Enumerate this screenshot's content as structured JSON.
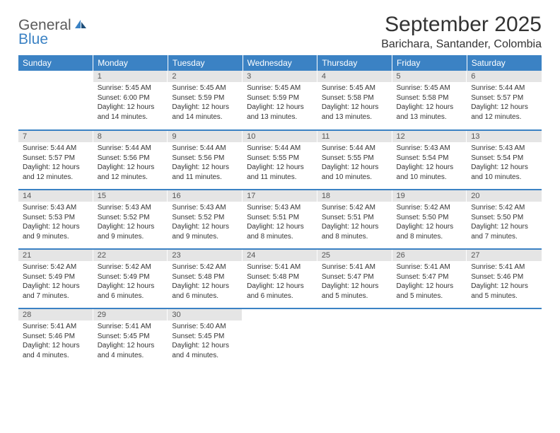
{
  "logo": {
    "line1": "General",
    "line2": "Blue"
  },
  "title": "September 2025",
  "location": "Barichara, Santander, Colombia",
  "colors": {
    "header_bg": "#3b82c4",
    "header_text": "#ffffff",
    "daynum_bg": "#e5e5e5",
    "daynum_text": "#555555",
    "body_text": "#333333",
    "row_border": "#3b82c4",
    "logo_gray": "#5a5a5a",
    "logo_blue": "#3b82c4",
    "page_bg": "#ffffff"
  },
  "weekdays": [
    "Sunday",
    "Monday",
    "Tuesday",
    "Wednesday",
    "Thursday",
    "Friday",
    "Saturday"
  ],
  "weeks": [
    [
      {
        "day": "",
        "lines": []
      },
      {
        "day": "1",
        "lines": [
          "Sunrise: 5:45 AM",
          "Sunset: 6:00 PM",
          "Daylight: 12 hours and 14 minutes."
        ]
      },
      {
        "day": "2",
        "lines": [
          "Sunrise: 5:45 AM",
          "Sunset: 5:59 PM",
          "Daylight: 12 hours and 14 minutes."
        ]
      },
      {
        "day": "3",
        "lines": [
          "Sunrise: 5:45 AM",
          "Sunset: 5:59 PM",
          "Daylight: 12 hours and 13 minutes."
        ]
      },
      {
        "day": "4",
        "lines": [
          "Sunrise: 5:45 AM",
          "Sunset: 5:58 PM",
          "Daylight: 12 hours and 13 minutes."
        ]
      },
      {
        "day": "5",
        "lines": [
          "Sunrise: 5:45 AM",
          "Sunset: 5:58 PM",
          "Daylight: 12 hours and 13 minutes."
        ]
      },
      {
        "day": "6",
        "lines": [
          "Sunrise: 5:44 AM",
          "Sunset: 5:57 PM",
          "Daylight: 12 hours and 12 minutes."
        ]
      }
    ],
    [
      {
        "day": "7",
        "lines": [
          "Sunrise: 5:44 AM",
          "Sunset: 5:57 PM",
          "Daylight: 12 hours and 12 minutes."
        ]
      },
      {
        "day": "8",
        "lines": [
          "Sunrise: 5:44 AM",
          "Sunset: 5:56 PM",
          "Daylight: 12 hours and 12 minutes."
        ]
      },
      {
        "day": "9",
        "lines": [
          "Sunrise: 5:44 AM",
          "Sunset: 5:56 PM",
          "Daylight: 12 hours and 11 minutes."
        ]
      },
      {
        "day": "10",
        "lines": [
          "Sunrise: 5:44 AM",
          "Sunset: 5:55 PM",
          "Daylight: 12 hours and 11 minutes."
        ]
      },
      {
        "day": "11",
        "lines": [
          "Sunrise: 5:44 AM",
          "Sunset: 5:55 PM",
          "Daylight: 12 hours and 10 minutes."
        ]
      },
      {
        "day": "12",
        "lines": [
          "Sunrise: 5:43 AM",
          "Sunset: 5:54 PM",
          "Daylight: 12 hours and 10 minutes."
        ]
      },
      {
        "day": "13",
        "lines": [
          "Sunrise: 5:43 AM",
          "Sunset: 5:54 PM",
          "Daylight: 12 hours and 10 minutes."
        ]
      }
    ],
    [
      {
        "day": "14",
        "lines": [
          "Sunrise: 5:43 AM",
          "Sunset: 5:53 PM",
          "Daylight: 12 hours and 9 minutes."
        ]
      },
      {
        "day": "15",
        "lines": [
          "Sunrise: 5:43 AM",
          "Sunset: 5:52 PM",
          "Daylight: 12 hours and 9 minutes."
        ]
      },
      {
        "day": "16",
        "lines": [
          "Sunrise: 5:43 AM",
          "Sunset: 5:52 PM",
          "Daylight: 12 hours and 9 minutes."
        ]
      },
      {
        "day": "17",
        "lines": [
          "Sunrise: 5:43 AM",
          "Sunset: 5:51 PM",
          "Daylight: 12 hours and 8 minutes."
        ]
      },
      {
        "day": "18",
        "lines": [
          "Sunrise: 5:42 AM",
          "Sunset: 5:51 PM",
          "Daylight: 12 hours and 8 minutes."
        ]
      },
      {
        "day": "19",
        "lines": [
          "Sunrise: 5:42 AM",
          "Sunset: 5:50 PM",
          "Daylight: 12 hours and 8 minutes."
        ]
      },
      {
        "day": "20",
        "lines": [
          "Sunrise: 5:42 AM",
          "Sunset: 5:50 PM",
          "Daylight: 12 hours and 7 minutes."
        ]
      }
    ],
    [
      {
        "day": "21",
        "lines": [
          "Sunrise: 5:42 AM",
          "Sunset: 5:49 PM",
          "Daylight: 12 hours and 7 minutes."
        ]
      },
      {
        "day": "22",
        "lines": [
          "Sunrise: 5:42 AM",
          "Sunset: 5:49 PM",
          "Daylight: 12 hours and 6 minutes."
        ]
      },
      {
        "day": "23",
        "lines": [
          "Sunrise: 5:42 AM",
          "Sunset: 5:48 PM",
          "Daylight: 12 hours and 6 minutes."
        ]
      },
      {
        "day": "24",
        "lines": [
          "Sunrise: 5:41 AM",
          "Sunset: 5:48 PM",
          "Daylight: 12 hours and 6 minutes."
        ]
      },
      {
        "day": "25",
        "lines": [
          "Sunrise: 5:41 AM",
          "Sunset: 5:47 PM",
          "Daylight: 12 hours and 5 minutes."
        ]
      },
      {
        "day": "26",
        "lines": [
          "Sunrise: 5:41 AM",
          "Sunset: 5:47 PM",
          "Daylight: 12 hours and 5 minutes."
        ]
      },
      {
        "day": "27",
        "lines": [
          "Sunrise: 5:41 AM",
          "Sunset: 5:46 PM",
          "Daylight: 12 hours and 5 minutes."
        ]
      }
    ],
    [
      {
        "day": "28",
        "lines": [
          "Sunrise: 5:41 AM",
          "Sunset: 5:46 PM",
          "Daylight: 12 hours and 4 minutes."
        ]
      },
      {
        "day": "29",
        "lines": [
          "Sunrise: 5:41 AM",
          "Sunset: 5:45 PM",
          "Daylight: 12 hours and 4 minutes."
        ]
      },
      {
        "day": "30",
        "lines": [
          "Sunrise: 5:40 AM",
          "Sunset: 5:45 PM",
          "Daylight: 12 hours and 4 minutes."
        ]
      },
      {
        "day": "",
        "lines": []
      },
      {
        "day": "",
        "lines": []
      },
      {
        "day": "",
        "lines": []
      },
      {
        "day": "",
        "lines": []
      }
    ]
  ]
}
